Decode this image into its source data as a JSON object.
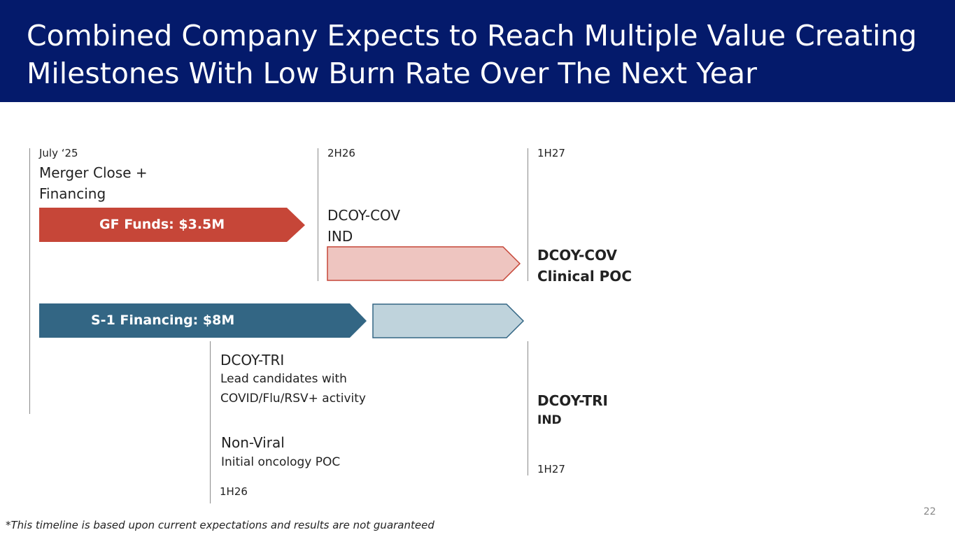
{
  "title": "Combined Company Expects to Reach Multiple Value Creating\nMilestones With Low Burn Rate Over The Next Year",
  "timeline": {
    "july25": {
      "date": "July ‘25",
      "event_line1": "Merger Close +",
      "event_line2": "Financing"
    },
    "h2_26": {
      "date": "2H26",
      "event_line1": "DCOY-COV",
      "event_line2": "IND"
    },
    "h1_27_top": {
      "date": "1H27",
      "event_line1": "DCOY-COV",
      "event_line2": "Clinical POC"
    },
    "h1_26": {
      "tri_title": "DCOY-TRI",
      "tri_line1": "Lead candidates with",
      "tri_line2": "COVID/Flu/RSV+ activity",
      "nonviral_title": "Non-Viral",
      "nonviral_line": "Initial oncology POC",
      "date": "1H26"
    },
    "h1_27_bottom": {
      "event_line1": "DCOY-TRI",
      "event_line2": "IND",
      "date": "1H27"
    }
  },
  "arrows": {
    "gf_funds": {
      "label": "GF Funds: $3.5M",
      "color": "#c64638"
    },
    "cov_extension": {
      "color": "#eec5c0",
      "border": "#c64638"
    },
    "s1_financing": {
      "label": "S-1 Financing: $8M",
      "color": "#336684"
    },
    "s1_extension": {
      "color": "#bfd3dc",
      "border": "#336684"
    }
  },
  "footnote": "*This timeline is based upon current expectations and results are not guaranteed",
  "page_number": "22"
}
